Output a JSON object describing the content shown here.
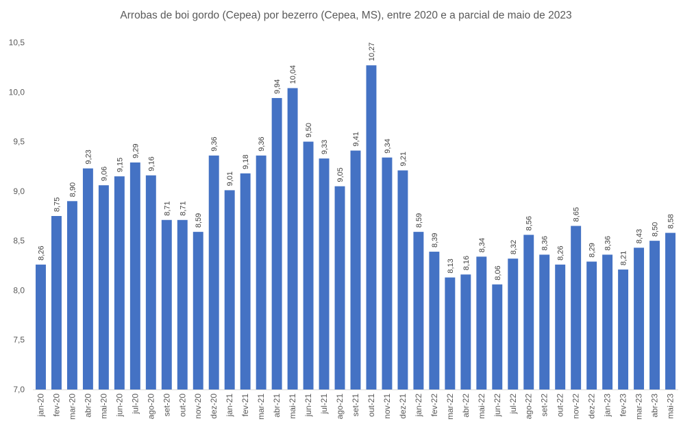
{
  "chart_data": {
    "type": "bar",
    "title": "Arrobas de boi gordo (Cepea) por bezerro (Cepea, MS), entre 2020 e a parcial de maio de 2023",
    "xlabel": "",
    "ylabel": "",
    "ylim": [
      7.0,
      10.5
    ],
    "yticks": [
      7.0,
      7.5,
      8.0,
      8.5,
      9.0,
      9.5,
      10.0,
      10.5
    ],
    "ytick_labels": [
      "7,0",
      "7,5",
      "8,0",
      "8,5",
      "9,0",
      "9,5",
      "10,0",
      "10,5"
    ],
    "grid": false,
    "bar_color": "#4472C4",
    "categories": [
      "jan-20",
      "fev-20",
      "mar-20",
      "abr-20",
      "mai-20",
      "jun-20",
      "jul-20",
      "ago-20",
      "set-20",
      "out-20",
      "nov-20",
      "dez-20",
      "jan-21",
      "fev-21",
      "mar-21",
      "abr-21",
      "mai-21",
      "jun-21",
      "jul-21",
      "ago-21",
      "set-21",
      "out-21",
      "nov-21",
      "dez-21",
      "jan-22",
      "fev-22",
      "mar-22",
      "abr-22",
      "mai-22",
      "jun-22",
      "jul-22",
      "ago-22",
      "set-22",
      "out-22",
      "nov-22",
      "dez-22",
      "jan-23",
      "fev-23",
      "mar-23",
      "abr-23",
      "mai-23"
    ],
    "values": [
      8.26,
      8.75,
      8.9,
      9.23,
      9.06,
      9.15,
      9.29,
      9.16,
      8.71,
      8.71,
      8.59,
      9.36,
      9.01,
      9.18,
      9.36,
      9.94,
      10.04,
      9.5,
      9.33,
      9.05,
      9.41,
      10.27,
      9.34,
      9.21,
      8.59,
      8.39,
      8.13,
      8.16,
      8.34,
      8.06,
      8.32,
      8.56,
      8.36,
      8.26,
      8.65,
      8.29,
      8.36,
      8.21,
      8.43,
      8.5,
      8.58
    ],
    "data_labels": [
      "8,26",
      "8,75",
      "8,90",
      "9,23",
      "9,06",
      "9,15",
      "9,29",
      "9,16",
      "8,71",
      "8,71",
      "8,59",
      "9,36",
      "9,01",
      "9,18",
      "9,36",
      "9,94",
      "10,04",
      "9,50",
      "9,33",
      "9,05",
      "9,41",
      "10,27",
      "9,34",
      "9,21",
      "8,59",
      "8,39",
      "8,13",
      "8,16",
      "8,34",
      "8,06",
      "8,32",
      "8,56",
      "8,36",
      "8,26",
      "8,65",
      "8,29",
      "8,36",
      "8,21",
      "8,43",
      "8,50",
      "8,58"
    ]
  }
}
